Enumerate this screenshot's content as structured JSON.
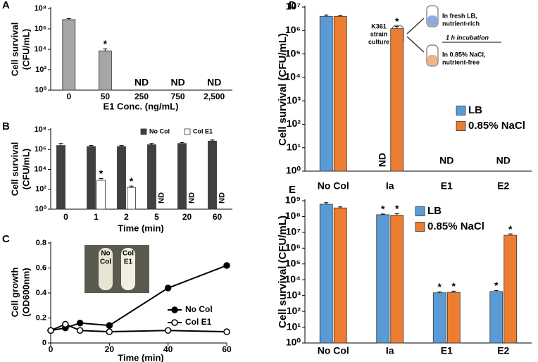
{
  "chart_data": [
    {
      "type": "bar",
      "panel": "A",
      "log": true,
      "ylabel": [
        "Cell survival",
        "(CFU/mL)"
      ],
      "xlabel": "E1 Conc. (ng/mL)",
      "categories": [
        "0",
        "50",
        "250",
        "750",
        "2,500"
      ],
      "series": [
        {
          "color": "#a6a6a6",
          "values": [
            8000000,
            7000,
            null,
            null,
            null
          ],
          "errors": [
            2000000,
            4000,
            null,
            null,
            null
          ],
          "markers": [
            null,
            "*",
            "ND",
            "ND",
            "ND"
          ]
        }
      ],
      "ylim": [
        1,
        100000000
      ],
      "yticks": [
        {
          "value": 1,
          "label": "10⁰"
        },
        {
          "value": 100,
          "label": "10²"
        },
        {
          "value": 10000,
          "label": "10⁴"
        },
        {
          "value": 1000000,
          "label": "10⁶"
        },
        {
          "value": 100000000,
          "label": "10⁸"
        }
      ]
    },
    {
      "type": "bar",
      "panel": "B",
      "log": true,
      "ylabel": [
        "Cell survival",
        "(CFU/mL)"
      ],
      "xlabel": "Time (min)",
      "categories": [
        "0",
        "1",
        "2",
        "5",
        "20",
        "60"
      ],
      "series": [
        {
          "name": "No Col",
          "color": "#404040",
          "values": [
            2500000,
            2000000,
            2000000,
            3000000,
            4000000,
            7000000
          ],
          "errors": [
            1500000,
            500000,
            500000,
            1000000,
            1000000,
            2000000
          ],
          "markers": [
            null,
            null,
            null,
            null,
            null,
            null
          ]
        },
        {
          "name": "Col E1",
          "color": "#ffffff",
          "values": [
            null,
            800,
            150,
            null,
            null,
            null
          ],
          "errors": [
            null,
            400,
            60,
            null,
            null,
            null
          ],
          "markers": [
            null,
            "*",
            "*",
            "ND",
            "ND",
            "ND"
          ]
        }
      ],
      "ylim": [
        1,
        100000000
      ],
      "yticks": [
        {
          "value": 1,
          "label": "10⁰"
        },
        {
          "value": 100,
          "label": "10²"
        },
        {
          "value": 10000,
          "label": "10⁴"
        },
        {
          "value": 1000000,
          "label": "10⁶"
        },
        {
          "value": 100000000,
          "label": "10⁸"
        }
      ]
    },
    {
      "type": "line",
      "panel": "C",
      "ylabel": [
        "Cell growth",
        "(OD600nm)"
      ],
      "xlabel": "Time (min)",
      "x": [
        0,
        5,
        10,
        20,
        40,
        60
      ],
      "series": [
        {
          "name": "No Col",
          "color": "#000000",
          "marker_fill": "#000000",
          "values": [
            0.1,
            0.12,
            0.16,
            0.14,
            0.44,
            0.62
          ]
        },
        {
          "name": "Col E1",
          "color": "#000000",
          "marker_fill": "#ffffff",
          "values": [
            0.1,
            0.15,
            0.1,
            0.09,
            0.1,
            0.09
          ]
        }
      ],
      "xlim": [
        0,
        60
      ],
      "xticks": [
        0,
        20,
        40,
        60
      ],
      "ylim": [
        0,
        0.8
      ],
      "yticks": [
        0,
        0.2,
        0.4,
        0.6,
        0.8
      ],
      "inset_labels": [
        [
          "No",
          "Col"
        ],
        [
          "Col",
          "E1"
        ]
      ]
    },
    {
      "type": "bar",
      "panel": "D",
      "log": true,
      "ylabel": [
        "Cell survival (CFU/mL)"
      ],
      "categories": [
        "No Col",
        "Ia",
        "E1",
        "E2"
      ],
      "series": [
        {
          "name": "LB",
          "color": "#5b9bd5",
          "values": [
            4000000,
            null,
            null,
            null
          ],
          "errors": [
            600000,
            null,
            null,
            null
          ],
          "markers": [
            null,
            "ND",
            null,
            null
          ]
        },
        {
          "name": "0.85% NaCl",
          "color": "#ed7d31",
          "values": [
            4000000,
            1200000,
            null,
            null
          ],
          "errors": [
            400000,
            300000,
            null,
            null
          ],
          "markers": [
            null,
            "*",
            null,
            null
          ]
        }
      ],
      "category_markers": [
        null,
        null,
        "ND",
        "ND"
      ],
      "ylim": [
        1,
        10000000
      ],
      "yticks": [
        {
          "value": 1,
          "label": "10⁰"
        },
        {
          "value": 10,
          "label": "10¹"
        },
        {
          "value": 100,
          "label": "10²"
        },
        {
          "value": 1000,
          "label": "10³"
        },
        {
          "value": 10000,
          "label": "10⁴"
        },
        {
          "value": 100000,
          "label": "10⁵"
        },
        {
          "value": 1000000,
          "label": "10⁶"
        },
        {
          "value": 10000000,
          "label": "10⁷"
        }
      ],
      "diagram": {
        "culture": [
          "K361",
          "strain",
          "culture"
        ],
        "rich": [
          "In fresh LB,",
          "nutrient-rich"
        ],
        "incubation": "1 h incubation",
        "free": [
          "In 0.85% NaCl,",
          "nutrient-free"
        ]
      }
    },
    {
      "type": "bar",
      "panel": "E",
      "log": true,
      "ylabel": [
        "Cell survival (CFU/mL)"
      ],
      "categories": [
        "No Col",
        "Ia",
        "E1",
        "E2"
      ],
      "series": [
        {
          "name": "LB",
          "color": "#5b9bd5",
          "values": [
            600000000,
            130000000,
            1500,
            1800
          ],
          "errors": [
            150000000,
            15000000,
            200,
            300
          ],
          "markers": [
            null,
            "*",
            "*",
            "*"
          ]
        },
        {
          "name": "0.85% NaCl",
          "color": "#ed7d31",
          "values": [
            350000000,
            120000000,
            1600,
            6500000
          ],
          "errors": [
            60000000,
            30000000,
            300,
            1500000
          ],
          "markers": [
            null,
            "*",
            "*",
            "*"
          ]
        }
      ],
      "ylim": [
        1,
        1000000000
      ],
      "yticks": [
        {
          "value": 1,
          "label": "10⁰"
        },
        {
          "value": 10,
          "label": "10¹"
        },
        {
          "value": 100,
          "label": "10²"
        },
        {
          "value": 1000,
          "label": "10³"
        },
        {
          "value": 10000,
          "label": "10⁴"
        },
        {
          "value": 100000,
          "label": "10⁵"
        },
        {
          "value": 1000000,
          "label": "10⁶"
        },
        {
          "value": 10000000,
          "label": "10⁷"
        },
        {
          "value": 100000000,
          "label": "10⁸"
        },
        {
          "value": 1000000000,
          "label": "10⁹"
        }
      ]
    }
  ]
}
